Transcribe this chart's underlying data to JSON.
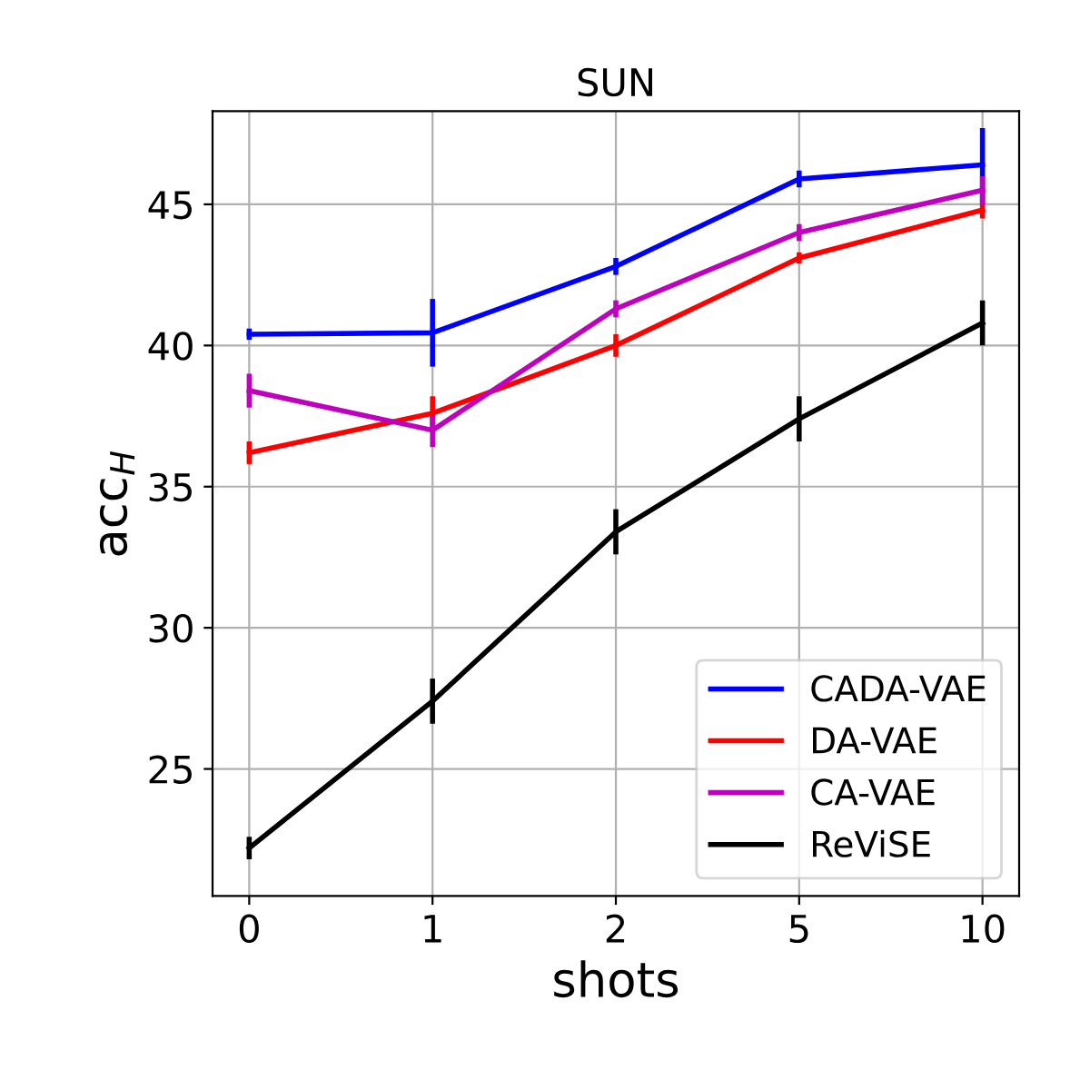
{
  "chart_data": {
    "type": "line",
    "title": "SUN",
    "xlabel": "shots",
    "ylabel": "acc$_{H}$",
    "categories": [
      "0",
      "1",
      "2",
      "5",
      "10"
    ],
    "series": [
      {
        "name": "CADA-VAE",
        "color": "#0000ff",
        "values": [
          40.4,
          40.45,
          42.8,
          45.9,
          46.4
        ],
        "errors": [
          0.2,
          1.2,
          0.3,
          0.3,
          1.3
        ]
      },
      {
        "name": "DA-VAE",
        "color": "#ff0000",
        "values": [
          36.2,
          37.6,
          40.0,
          43.1,
          44.8
        ],
        "errors": [
          0.4,
          0.6,
          0.4,
          0.2,
          0.3
        ]
      },
      {
        "name": "CA-VAE",
        "color": "#bf00bf",
        "values": [
          38.4,
          37.0,
          41.3,
          44.0,
          45.5
        ],
        "errors": [
          0.6,
          0.6,
          0.3,
          0.3,
          0.5
        ]
      },
      {
        "name": "ReViSE",
        "color": "#000000",
        "values": [
          22.2,
          27.4,
          33.4,
          37.4,
          40.8
        ],
        "errors": [
          0.4,
          0.8,
          0.8,
          0.8,
          0.8
        ]
      }
    ],
    "ylim": [
      20.5,
      48.3
    ],
    "yticks": [
      25,
      30,
      35,
      40,
      45
    ],
    "grid": true,
    "legend": "bottom right",
    "marker": "none",
    "line_style": "solid"
  }
}
